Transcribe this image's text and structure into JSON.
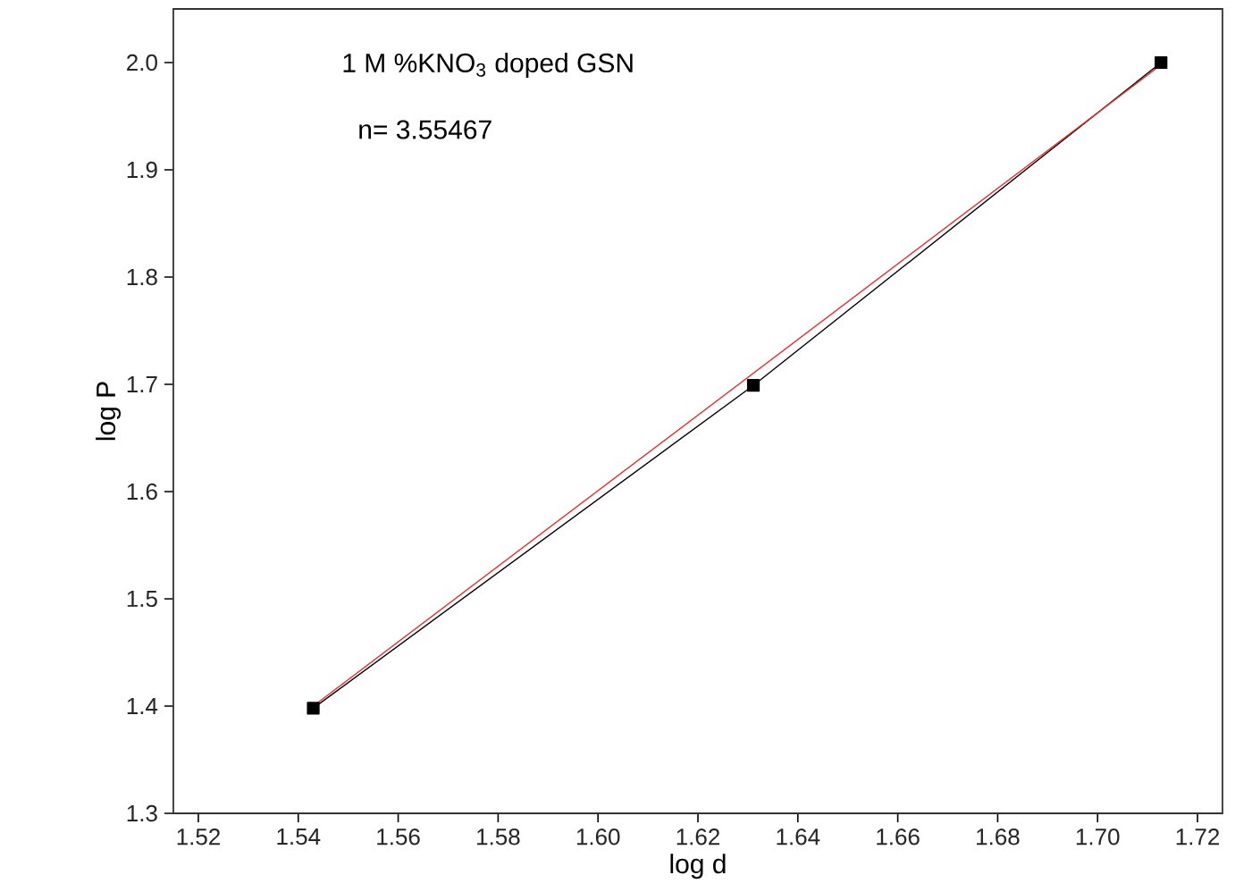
{
  "chart_data": {
    "type": "line",
    "xlabel": "log d",
    "ylabel": "log P",
    "annotations": [
      "1 M %KNO$_{3}$ doped GSN",
      "n= 3.55467"
    ],
    "marker": "square",
    "line_style": "solid",
    "xlim": [
      1.515,
      1.725
    ],
    "xticks": [
      1.52,
      1.54,
      1.56,
      1.58,
      {
        "value": 1.6,
        "label": "1.60"
      },
      1.62,
      1.64,
      1.66,
      1.68,
      {
        "value": 1.7,
        "label": "1.70"
      },
      1.72
    ],
    "ylim": [
      1.3,
      2.05
    ],
    "yticks": [
      1.3,
      1.4,
      1.5,
      1.6,
      1.7,
      1.8,
      1.9,
      {
        "value": 2,
        "label": "2.0"
      }
    ],
    "series": [
      {
        "color": "#000000",
        "x": [
          1.543,
          1.6311,
          1.7127
        ],
        "values": [
          1.398,
          1.699,
          2.0
        ]
      },
      {
        "type": "line",
        "color": "#e03030",
        "marker": "none",
        "x": [
          1.543,
          1.7127
        ],
        "values": [
          1.4,
          1.998
        ]
      }
    ]
  }
}
